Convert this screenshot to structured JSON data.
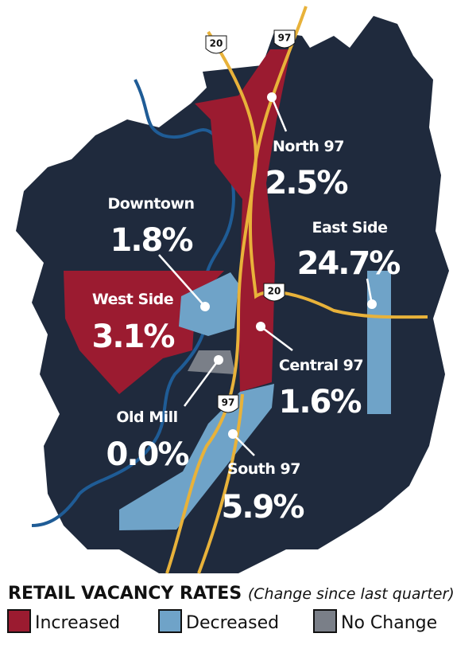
{
  "title": "RETAIL VACANCY RATES",
  "subtitle": "(Change since last quarter)",
  "legend": [
    {
      "label": "Increased",
      "color": "#9b1b30"
    },
    {
      "label": "Decreased",
      "color": "#6fa3c8"
    },
    {
      "label": "No Change",
      "color": "#7a7f88"
    }
  ],
  "regions": [
    {
      "name": "North 97",
      "value": "2.5%"
    },
    {
      "name": "Downtown",
      "value": "1.8%"
    },
    {
      "name": "East Side",
      "value": "24.7%"
    },
    {
      "name": "West Side",
      "value": "3.1%"
    },
    {
      "name": "Central 97",
      "value": "1.6%"
    },
    {
      "name": "Old Mill",
      "value": "0.0%"
    },
    {
      "name": "South 97",
      "value": "5.9%"
    }
  ],
  "road_shields": [
    "20",
    "97",
    "20",
    "97"
  ]
}
